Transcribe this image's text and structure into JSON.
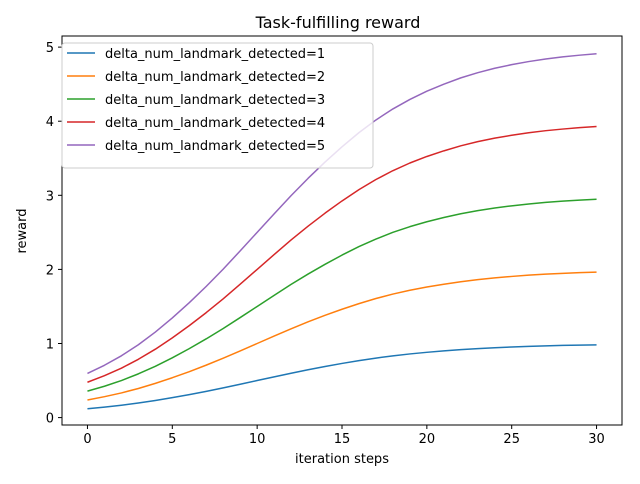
{
  "chart_data": {
    "type": "line",
    "title": "Task-fulfilling reward",
    "xlabel": "iteration steps",
    "ylabel": "reward",
    "xlim": [
      -1.5,
      31.5
    ],
    "ylim": [
      -0.1,
      5.15
    ],
    "xticks": [
      0,
      5,
      10,
      15,
      20,
      25,
      30
    ],
    "yticks": [
      0,
      1,
      2,
      3,
      4,
      5
    ],
    "grid": false,
    "legend_position": "upper left",
    "x": [
      0,
      1,
      2,
      3,
      4,
      5,
      6,
      7,
      8,
      9,
      10,
      11,
      12,
      13,
      14,
      15,
      16,
      17,
      18,
      19,
      20,
      21,
      22,
      23,
      24,
      25,
      26,
      27,
      28,
      29,
      30
    ],
    "series": [
      {
        "name": "delta_num_landmark_detected=1",
        "color": "#1f77b4",
        "values": [
          0.119,
          0.141,
          0.167,
          0.197,
          0.231,
          0.269,
          0.31,
          0.354,
          0.401,
          0.45,
          0.5,
          0.55,
          0.599,
          0.646,
          0.69,
          0.731,
          0.769,
          0.803,
          0.833,
          0.859,
          0.881,
          0.9,
          0.917,
          0.931,
          0.943,
          0.953,
          0.961,
          0.968,
          0.974,
          0.978,
          0.982
        ]
      },
      {
        "name": "delta_num_landmark_detected=2",
        "color": "#ff7f0e",
        "values": [
          0.238,
          0.282,
          0.333,
          0.393,
          0.462,
          0.538,
          0.62,
          0.708,
          0.802,
          0.9,
          1.0,
          1.1,
          1.198,
          1.292,
          1.38,
          1.462,
          1.538,
          1.607,
          1.667,
          1.718,
          1.762,
          1.8,
          1.834,
          1.862,
          1.886,
          1.905,
          1.922,
          1.936,
          1.947,
          1.957,
          1.964
        ]
      },
      {
        "name": "delta_num_landmark_detected=3",
        "color": "#2ca02c",
        "values": [
          0.357,
          0.423,
          0.5,
          0.59,
          0.692,
          0.807,
          0.931,
          1.063,
          1.202,
          1.35,
          1.5,
          1.65,
          1.798,
          1.937,
          2.069,
          2.193,
          2.308,
          2.41,
          2.5,
          2.577,
          2.643,
          2.7,
          2.751,
          2.793,
          2.829,
          2.858,
          2.883,
          2.904,
          2.921,
          2.935,
          2.946
        ]
      },
      {
        "name": "delta_num_landmark_detected=4",
        "color": "#d62728",
        "values": [
          0.477,
          0.565,
          0.667,
          0.787,
          0.923,
          1.076,
          1.241,
          1.417,
          1.603,
          1.8,
          2.0,
          2.2,
          2.397,
          2.583,
          2.759,
          2.924,
          3.077,
          3.213,
          3.333,
          3.436,
          3.524,
          3.6,
          3.668,
          3.724,
          3.772,
          3.81,
          3.844,
          3.872,
          3.894,
          3.913,
          3.928
        ]
      },
      {
        "name": "delta_num_landmark_detected=5",
        "color": "#9467bd",
        "values": [
          0.596,
          0.706,
          0.834,
          0.983,
          1.154,
          1.345,
          1.551,
          1.771,
          2.004,
          2.25,
          2.5,
          2.75,
          2.996,
          3.229,
          3.449,
          3.655,
          3.846,
          4.017,
          4.166,
          4.294,
          4.405,
          4.5,
          4.585,
          4.655,
          4.715,
          4.763,
          4.805,
          4.84,
          4.868,
          4.891,
          4.91
        ]
      }
    ]
  }
}
